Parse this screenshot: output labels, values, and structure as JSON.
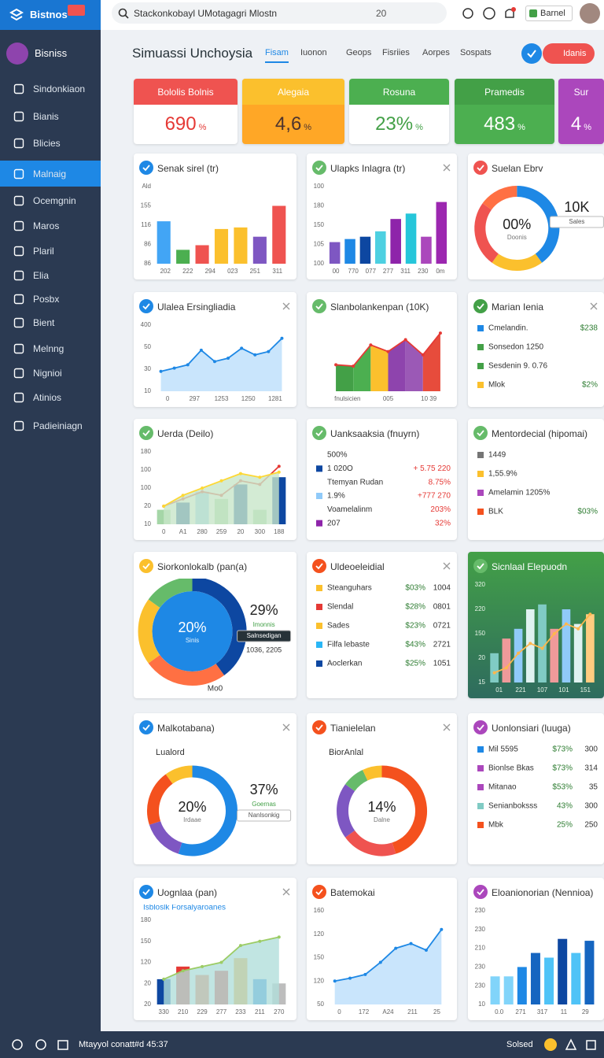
{
  "topbar": {
    "logo": "Bistnos",
    "search": "Stackonkobayl UMotagagri Mlostn",
    "search_count": "20",
    "button": "Barnel"
  },
  "sidebar": {
    "brand": "Bisniss",
    "items": [
      "Sindonkiaon",
      "Bianis",
      "Blicies",
      "Malnaig",
      "Ocemgnin",
      "Maros",
      "Plaril",
      "Elia",
      "Posbx",
      "Bient",
      "Melnng",
      "Nignioi",
      "Atinios",
      "Padieiniagn"
    ],
    "active": 3
  },
  "header": {
    "title": "Simuassi Unchoysia",
    "tabs": [
      "Fisam",
      "Iuonon",
      "Geops",
      "Fisriies",
      "Aorpes",
      "Sospats"
    ],
    "active": 0,
    "button": "Idanis"
  },
  "kpis": [
    {
      "title": "Bololis Bolnis",
      "value": "690",
      "unit": "%",
      "head": "#ef5350",
      "body": "#ffffff",
      "fg": "#e53935"
    },
    {
      "title": "Alegaia",
      "value": "4,6",
      "unit": "%",
      "head": "#fbc02d",
      "body": "#ffa726",
      "fg": "#4e342e"
    },
    {
      "title": "Rosuna",
      "value": "23%",
      "unit": "%",
      "head": "#4caf50",
      "body": "#ffffff",
      "fg": "#43a047"
    },
    {
      "title": "Pramedis",
      "value": "483",
      "unit": "%",
      "head": "#43a047",
      "body": "#4caf50",
      "fg": "#ffffff"
    },
    {
      "title": "Sur",
      "value": "4",
      "unit": "%",
      "head": "#ab47bc",
      "body": "#ab47bc",
      "fg": "#ffffff"
    }
  ],
  "cards": [
    {
      "title": "Senak sirel (tr)",
      "icon": "#1e88e5",
      "chart": {
        "type": "bar",
        "ylim": [
          0,
          100
        ],
        "ylabels": [
          "Ald",
          "155",
          "116",
          "86",
          "86"
        ],
        "xlabels": [
          "202",
          "222",
          "294",
          "023",
          "251",
          "311"
        ],
        "values": [
          55,
          18,
          24,
          45,
          47,
          35,
          75
        ],
        "colors": [
          "#42a5f5",
          "#4caf50",
          "#ef5350",
          "#fbc02d",
          "#fbc02d",
          "#7e57c2",
          "#ef5350"
        ]
      }
    },
    {
      "title": "Ulapks Inlagra (tr)",
      "icon": "#66bb6a",
      "close": true,
      "chart": {
        "type": "bar",
        "ylim": [
          0,
          100
        ],
        "ylabels": [
          "100",
          "180",
          "150",
          "105",
          "100"
        ],
        "xlabels": [
          "00",
          "770",
          "077",
          "277",
          "311",
          "230",
          "0m"
        ],
        "values": [
          28,
          32,
          35,
          42,
          58,
          65,
          35,
          80
        ],
        "colors": [
          "#7e57c2",
          "#1e88e5",
          "#0d47a1",
          "#4dd0e1",
          "#8e24aa",
          "#26c6da",
          "#ab47bc",
          "#9c27b0"
        ]
      }
    },
    {
      "title": "Suelan Ebrv",
      "icon": "#ef5350",
      "chart": {
        "type": "donut",
        "values": [
          40,
          20,
          25,
          15
        ],
        "colors": [
          "#1e88e5",
          "#fbc02d",
          "#ef5350",
          "#ff7043"
        ],
        "center": [
          "00%",
          "Doonis"
        ],
        "side": [
          "10K"
        ],
        "tag": "Sales"
      }
    },
    {
      "title": "Ulalea Ersingliadia",
      "icon": "#1e88e5",
      "close": true,
      "chart": {
        "type": "line",
        "ylim": [
          0,
          100
        ],
        "ylabels": [
          "400",
          "50",
          "30",
          "10"
        ],
        "xlabels": [
          "0",
          "297",
          "1253",
          "1250",
          "1281"
        ],
        "lines": [
          {
            "values": [
              30,
              35,
              40,
              62,
              45,
              50,
              65,
              55,
              60,
              80
            ],
            "color": "#1e88e5",
            "fill": "#bbdefb"
          }
        ]
      }
    },
    {
      "title": "Slanbolankenpan (10K)",
      "icon": "#66bb6a",
      "chart": {
        "type": "line",
        "ylim": [
          0,
          100
        ],
        "xlabels": [
          "fnulsicien",
          "005",
          "10 39"
        ],
        "lines": [
          {
            "values": [
              40,
              38,
              70,
              60,
              78,
              55,
              88
            ],
            "color": "#e53935",
            "fills": [
              "#43a047",
              "#4caf50",
              "#fbc02d",
              "#8e44ad",
              "#9b59b6",
              "#e74c3c"
            ]
          }
        ]
      }
    },
    {
      "title": "Marian Ienia",
      "icon": "#43a047",
      "close": true,
      "chart": {
        "type": "list",
        "rows": [
          [
            "Cmelandin.",
            "$238"
          ],
          [
            "Sonsedon 1250"
          ],
          [
            "Sesdenin 9. 0.76"
          ],
          [
            "Mlok",
            "$2%"
          ]
        ],
        "swatches": [
          "#1e88e5",
          "#43a047",
          "#43a047",
          "#fbc02d"
        ],
        "col_colors": [
          "#333333",
          "#2e7d32"
        ]
      }
    },
    {
      "title": "Uerda (Deilo)",
      "icon": "#66bb6a",
      "chart": {
        "type": "combo",
        "ylim": [
          0,
          100
        ],
        "ylabels": [
          "180",
          "100",
          "100",
          "20",
          "10"
        ],
        "xlabels": [
          "0",
          "A1",
          "280",
          "259",
          "20",
          "300",
          "188"
        ],
        "values": [
          20,
          30,
          45,
          35,
          55,
          20,
          65
        ],
        "colors": [
          "#a5d6a7",
          "#0d47a1",
          "#90caf9",
          "#a5d6a7",
          "#0d47a1",
          "#a5d6a7",
          "#0d47a1"
        ],
        "lines": [
          {
            "values": [
              25,
              35,
              45,
              40,
              60,
              55,
              80
            ],
            "color": "#e53935"
          },
          {
            "values": [
              25,
              40,
              50,
              60,
              70,
              65,
              72
            ],
            "color": "#fdd835",
            "fill": "#c8e6c9"
          }
        ]
      }
    },
    {
      "title": "Uanksaaksia (fnuyrn)",
      "icon": "#66bb6a",
      "chart": {
        "type": "list",
        "rows": [
          [
            "500%"
          ],
          [
            "1 020O",
            "+ 5.75 220"
          ],
          [
            "Ttemyan Rudan",
            "8.75%"
          ],
          [
            "1.9%",
            "+777 270"
          ],
          [
            "Voamelalinm",
            "203%"
          ],
          [
            "207",
            "32%"
          ]
        ],
        "swatches": [
          "#ffffff",
          "#0d47a1",
          "#ffffff",
          "#90caf9",
          "#ffffff",
          "#8e24aa"
        ],
        "col_colors": [
          "#333333",
          "#e53935"
        ]
      }
    },
    {
      "title": "Mentordecial (hipomai)",
      "icon": "#66bb6a",
      "chart": {
        "type": "list",
        "rows": [
          [
            "1449"
          ],
          [
            "1,55.9%"
          ],
          [
            "Amelamin 1205%"
          ],
          [
            "BLK",
            "$03%"
          ]
        ],
        "swatches": [
          "#757575",
          "#fbc02d",
          "#ab47bc",
          "#f4511e"
        ],
        "col_colors": [
          "#333333",
          "#2e7d32"
        ]
      }
    },
    {
      "title": "Siorkonlokalb (pan(a)",
      "icon": "#fbc02d",
      "chart": {
        "type": "donut",
        "values": [
          40,
          25,
          20,
          15
        ],
        "colors": [
          "#0d47a1",
          "#ff7043",
          "#fbc02d",
          "#66bb6a"
        ],
        "inner": "#1e88e5",
        "center": [
          "20%",
          "Sinis"
        ],
        "side": [
          "29%",
          "Imonnis"
        ],
        "tag": "Salnsedigan",
        "note": "1036, 2205",
        "foot": "Mo0"
      }
    },
    {
      "title": "Uldeoeleidial",
      "icon": "#f4511e",
      "close": true,
      "chart": {
        "type": "list",
        "rows": [
          [
            "Steanguhars",
            "$03%",
            "1004"
          ],
          [
            "Slendal",
            "$28%",
            "0801"
          ],
          [
            "Sades",
            "$23%",
            "0721"
          ],
          [
            "Filfa lebaste",
            "$43%",
            "2721"
          ],
          [
            "Aoclerkan",
            "$25%",
            "1051"
          ]
        ],
        "swatches": [
          "#fbc02d",
          "#e53935",
          "#fbc02d",
          "#29b6f6",
          "#0d47a1"
        ],
        "col_colors": [
          "#333333",
          "#2e7d32",
          "#333333"
        ]
      }
    },
    {
      "title": "Sicnlaal Elepuodn",
      "icon": "#66bb6a",
      "dark": true,
      "chart": {
        "type": "combo",
        "ylim": [
          0,
          100
        ],
        "ylabels": [
          "320",
          "220",
          "150",
          "20",
          "15"
        ],
        "xlabels": [
          "01",
          "221",
          "107",
          "101",
          "151"
        ],
        "values": [
          30,
          45,
          55,
          75,
          80,
          55,
          75,
          60,
          70
        ],
        "colors": [
          "#80cbc4",
          "#ef9a9a",
          "#90caf9",
          "#e0f2f1",
          "#80cbc4",
          "#ef9a9a",
          "#90caf9",
          "#e0f2f1",
          "#ffcc80"
        ],
        "lines": [
          {
            "values": [
              10,
              15,
              30,
              40,
              35,
              50,
              60,
              55,
              70
            ],
            "color": "#ffb74d"
          }
        ]
      }
    },
    {
      "title": "Malkotabana)",
      "icon": "#1e88e5",
      "close": true,
      "chart": {
        "type": "donut",
        "top": "Lualord",
        "values": [
          55,
          15,
          20,
          10
        ],
        "colors": [
          "#1e88e5",
          "#7e57c2",
          "#f4511e",
          "#fbc02d"
        ],
        "center": [
          "20%",
          "Irdaae"
        ],
        "side": [
          "37%",
          "Goernas"
        ],
        "tag": "Nanlsonkig"
      }
    },
    {
      "title": "Tianielelan",
      "icon": "#f4511e",
      "close": true,
      "chart": {
        "type": "donut",
        "top": "BiorAnlal",
        "values": [
          45,
          20,
          20,
          8,
          7
        ],
        "colors": [
          "#f4511e",
          "#ef5350",
          "#7e57c2",
          "#66bb6a",
          "#fbc02d"
        ],
        "center": [
          "14%",
          "Dalne"
        ]
      }
    },
    {
      "title": "Uonlonsiari (luuga)",
      "icon": "#ab47bc",
      "chart": {
        "type": "list",
        "rows": [
          [
            "Mil 5595",
            "$73%",
            "300"
          ],
          [
            "Bionlse Bkas",
            "$73%",
            "314"
          ],
          [
            "Mitanao",
            "$53%",
            "35"
          ],
          [
            "Senianboksss",
            "43%",
            "300"
          ],
          [
            "Mbk",
            "25%",
            "250"
          ]
        ],
        "swatches": [
          "#1e88e5",
          "#ab47bc",
          "#ab47bc",
          "#80cbc4",
          "#f4511e"
        ],
        "col_colors": [
          "#333333",
          "#2e7d32",
          "#333333"
        ]
      }
    },
    {
      "title": "Uognlaa (pan)",
      "icon": "#1e88e5",
      "close": true,
      "chart": {
        "type": "combo",
        "subtitle": "Isbloslk Forsalyaroanes",
        "ylim": [
          0,
          100
        ],
        "ylabels": [
          "180",
          "150",
          "120",
          "20",
          "20"
        ],
        "xlabels": [
          "330",
          "210",
          "229",
          "277",
          "233",
          "211",
          "270"
        ],
        "values": [
          30,
          45,
          35,
          40,
          55,
          30,
          25
        ],
        "colors": [
          "#0d47a1",
          "#e53935",
          "#ff7043",
          "#e53935",
          "#ffa726",
          "#1e88e5",
          "#bdbdbd"
        ],
        "lines": [
          {
            "values": [
              30,
              40,
              45,
              50,
              70,
              75,
              80
            ],
            "color": "#9ccc65",
            "fill": "#b2dfdb"
          }
        ]
      }
    },
    {
      "title": "Batemokai",
      "icon": "#f4511e",
      "chart": {
        "type": "line",
        "ylim": [
          0,
          100
        ],
        "ylabels": [
          "160",
          "120",
          "150",
          "120",
          "50"
        ],
        "xlabels": [
          "0",
          "172",
          "A24",
          "211",
          "25"
        ],
        "lines": [
          {
            "values": [
              25,
              28,
              32,
              45,
              60,
              65,
              58,
              80
            ],
            "color": "#1e88e5",
            "fill": "#bbdefb"
          }
        ]
      }
    },
    {
      "title": "Eloanionorian (Nennioa)",
      "icon": "#ab47bc",
      "chart": {
        "type": "bar",
        "ylim": [
          0,
          100
        ],
        "ylabels": [
          "230",
          "230",
          "210",
          "230",
          "230",
          "10"
        ],
        "xlabels": [
          "0.0",
          "271",
          "317",
          "11",
          "29"
        ],
        "values": [
          30,
          30,
          40,
          55,
          50,
          70,
          55,
          68
        ],
        "colors": [
          "#81d4fa",
          "#81d4fa",
          "#1e88e5",
          "#1565c0",
          "#4fc3f7",
          "#0d47a1",
          "#4fc3f7",
          "#1565c0"
        ]
      }
    }
  ],
  "bottombar": {
    "status": "Mtayyol conatt#d 45:37",
    "right": "Solsed"
  }
}
